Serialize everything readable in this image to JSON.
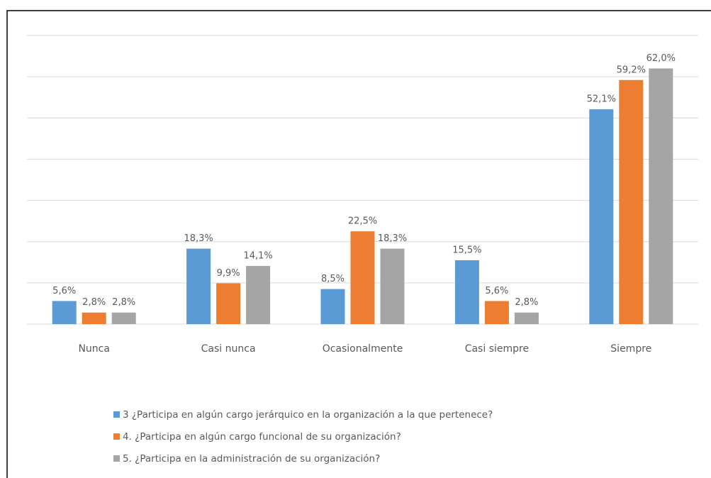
{
  "chart_data": {
    "type": "bar",
    "categories": [
      "Nunca",
      "Casi nunca",
      "Ocasionalmente",
      "Casi siempre",
      "Siempre"
    ],
    "series": [
      {
        "name": "3 ¿Participa en algún cargo jerárquico en la organización a la que pertenece?",
        "color": "#5b9bd5",
        "values": [
          5.6,
          18.3,
          8.5,
          15.5,
          52.1
        ],
        "value_labels": [
          "5,6%",
          "18,3%",
          "8,5%",
          "15,5%",
          "52,1%"
        ]
      },
      {
        "name": "4. ¿Participa en algún cargo funcional de su organización?",
        "color": "#ed7d31",
        "values": [
          2.8,
          9.9,
          22.5,
          5.6,
          59.2
        ],
        "value_labels": [
          "2,8%",
          "9,9%",
          "22,5%",
          "5,6%",
          "59,2%"
        ]
      },
      {
        "name": "5. ¿Participa en la administración de su organización?",
        "color": "#a5a5a5",
        "values": [
          2.8,
          14.1,
          18.3,
          2.8,
          62.0
        ],
        "value_labels": [
          "2,8%",
          "14,1%",
          "18,3%",
          "2,8%",
          "62,0%"
        ]
      }
    ],
    "ylim": [
      0,
      70
    ],
    "yticks": [
      0,
      10,
      20,
      30,
      40,
      50,
      60,
      70
    ],
    "grid": true,
    "legend": "bottom"
  }
}
